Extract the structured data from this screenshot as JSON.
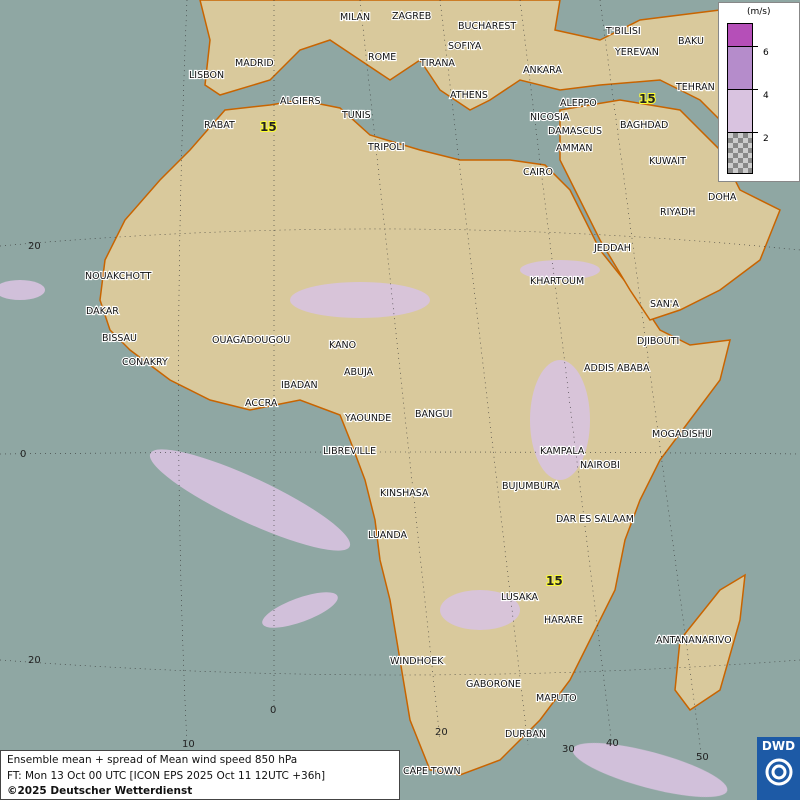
{
  "map": {
    "title": "Ensemble mean + spread of Mean wind speed 850 hPa",
    "forecast_time": "FT: Mon 13 Oct 00 UTC [ICON EPS 2025 Oct 11 12UTC +36h]",
    "copyright": "©2025 Deutscher Wetterdienst",
    "logo_text": "DWD",
    "colors": {
      "sea": "#8fa7a3",
      "land": "#d9c99c",
      "spread_low": "#d9c3e0",
      "spread_mid": "#b58ccb",
      "spread_high": "#b54fb8",
      "contour": "#ffff33",
      "borders": "#000000",
      "coast": "#c86400"
    },
    "contour_labels": [
      "15",
      "15",
      "15"
    ],
    "lat_labels": [
      "20",
      "0",
      "20"
    ],
    "lon_labels": [
      "10",
      "0",
      "20",
      "30",
      "40",
      "50"
    ],
    "cities": [
      "MILAN",
      "ZAGREB",
      "BUCHAREST",
      "MADRID",
      "ROME",
      "SOFIYA",
      "LISBON",
      "TIRANA",
      "ANKARA",
      "ATHENS",
      "T'BILISI",
      "BAKU",
      "YEREVAN",
      "TEHRAN",
      "ALGIERS",
      "TUNIS",
      "RABAT",
      "ALEPPO",
      "NICOSIA",
      "BAGHDAD",
      "DAMASCUS",
      "AMMAN",
      "TRIPOLI",
      "CAIRO",
      "KUWAIT",
      "DOHA",
      "RIYADH",
      "JEDDAH",
      "NOUAKCHOTT",
      "KHARTOUM",
      "SAN'A",
      "DAKAR",
      "BISSAU",
      "DJIBOUTI",
      "OUAGADOUGOU",
      "KANO",
      "CONAKRY",
      "ABUJA",
      "ADDIS ABABA",
      "IBADAN",
      "ACCRA",
      "BANGUI",
      "YAOUNDE",
      "MOGADISHU",
      "LIBREVILLE",
      "KAMPALA",
      "NAIROBI",
      "BUJUMBURA",
      "KINSHASA",
      "DAR ES SALAAM",
      "LUANDA",
      "LUSAKA",
      "HARARE",
      "ANTANANARIVO",
      "WINDHOEK",
      "GABORONE",
      "MAPUTO",
      "DURBAN",
      "CAPE TOWN"
    ]
  },
  "legend": {
    "unit": "(m/s)",
    "levels": [
      "6",
      "4",
      "2"
    ],
    "colors": [
      "#b54fb8",
      "#b58ccb",
      "#d9c3e0",
      "checker"
    ]
  }
}
